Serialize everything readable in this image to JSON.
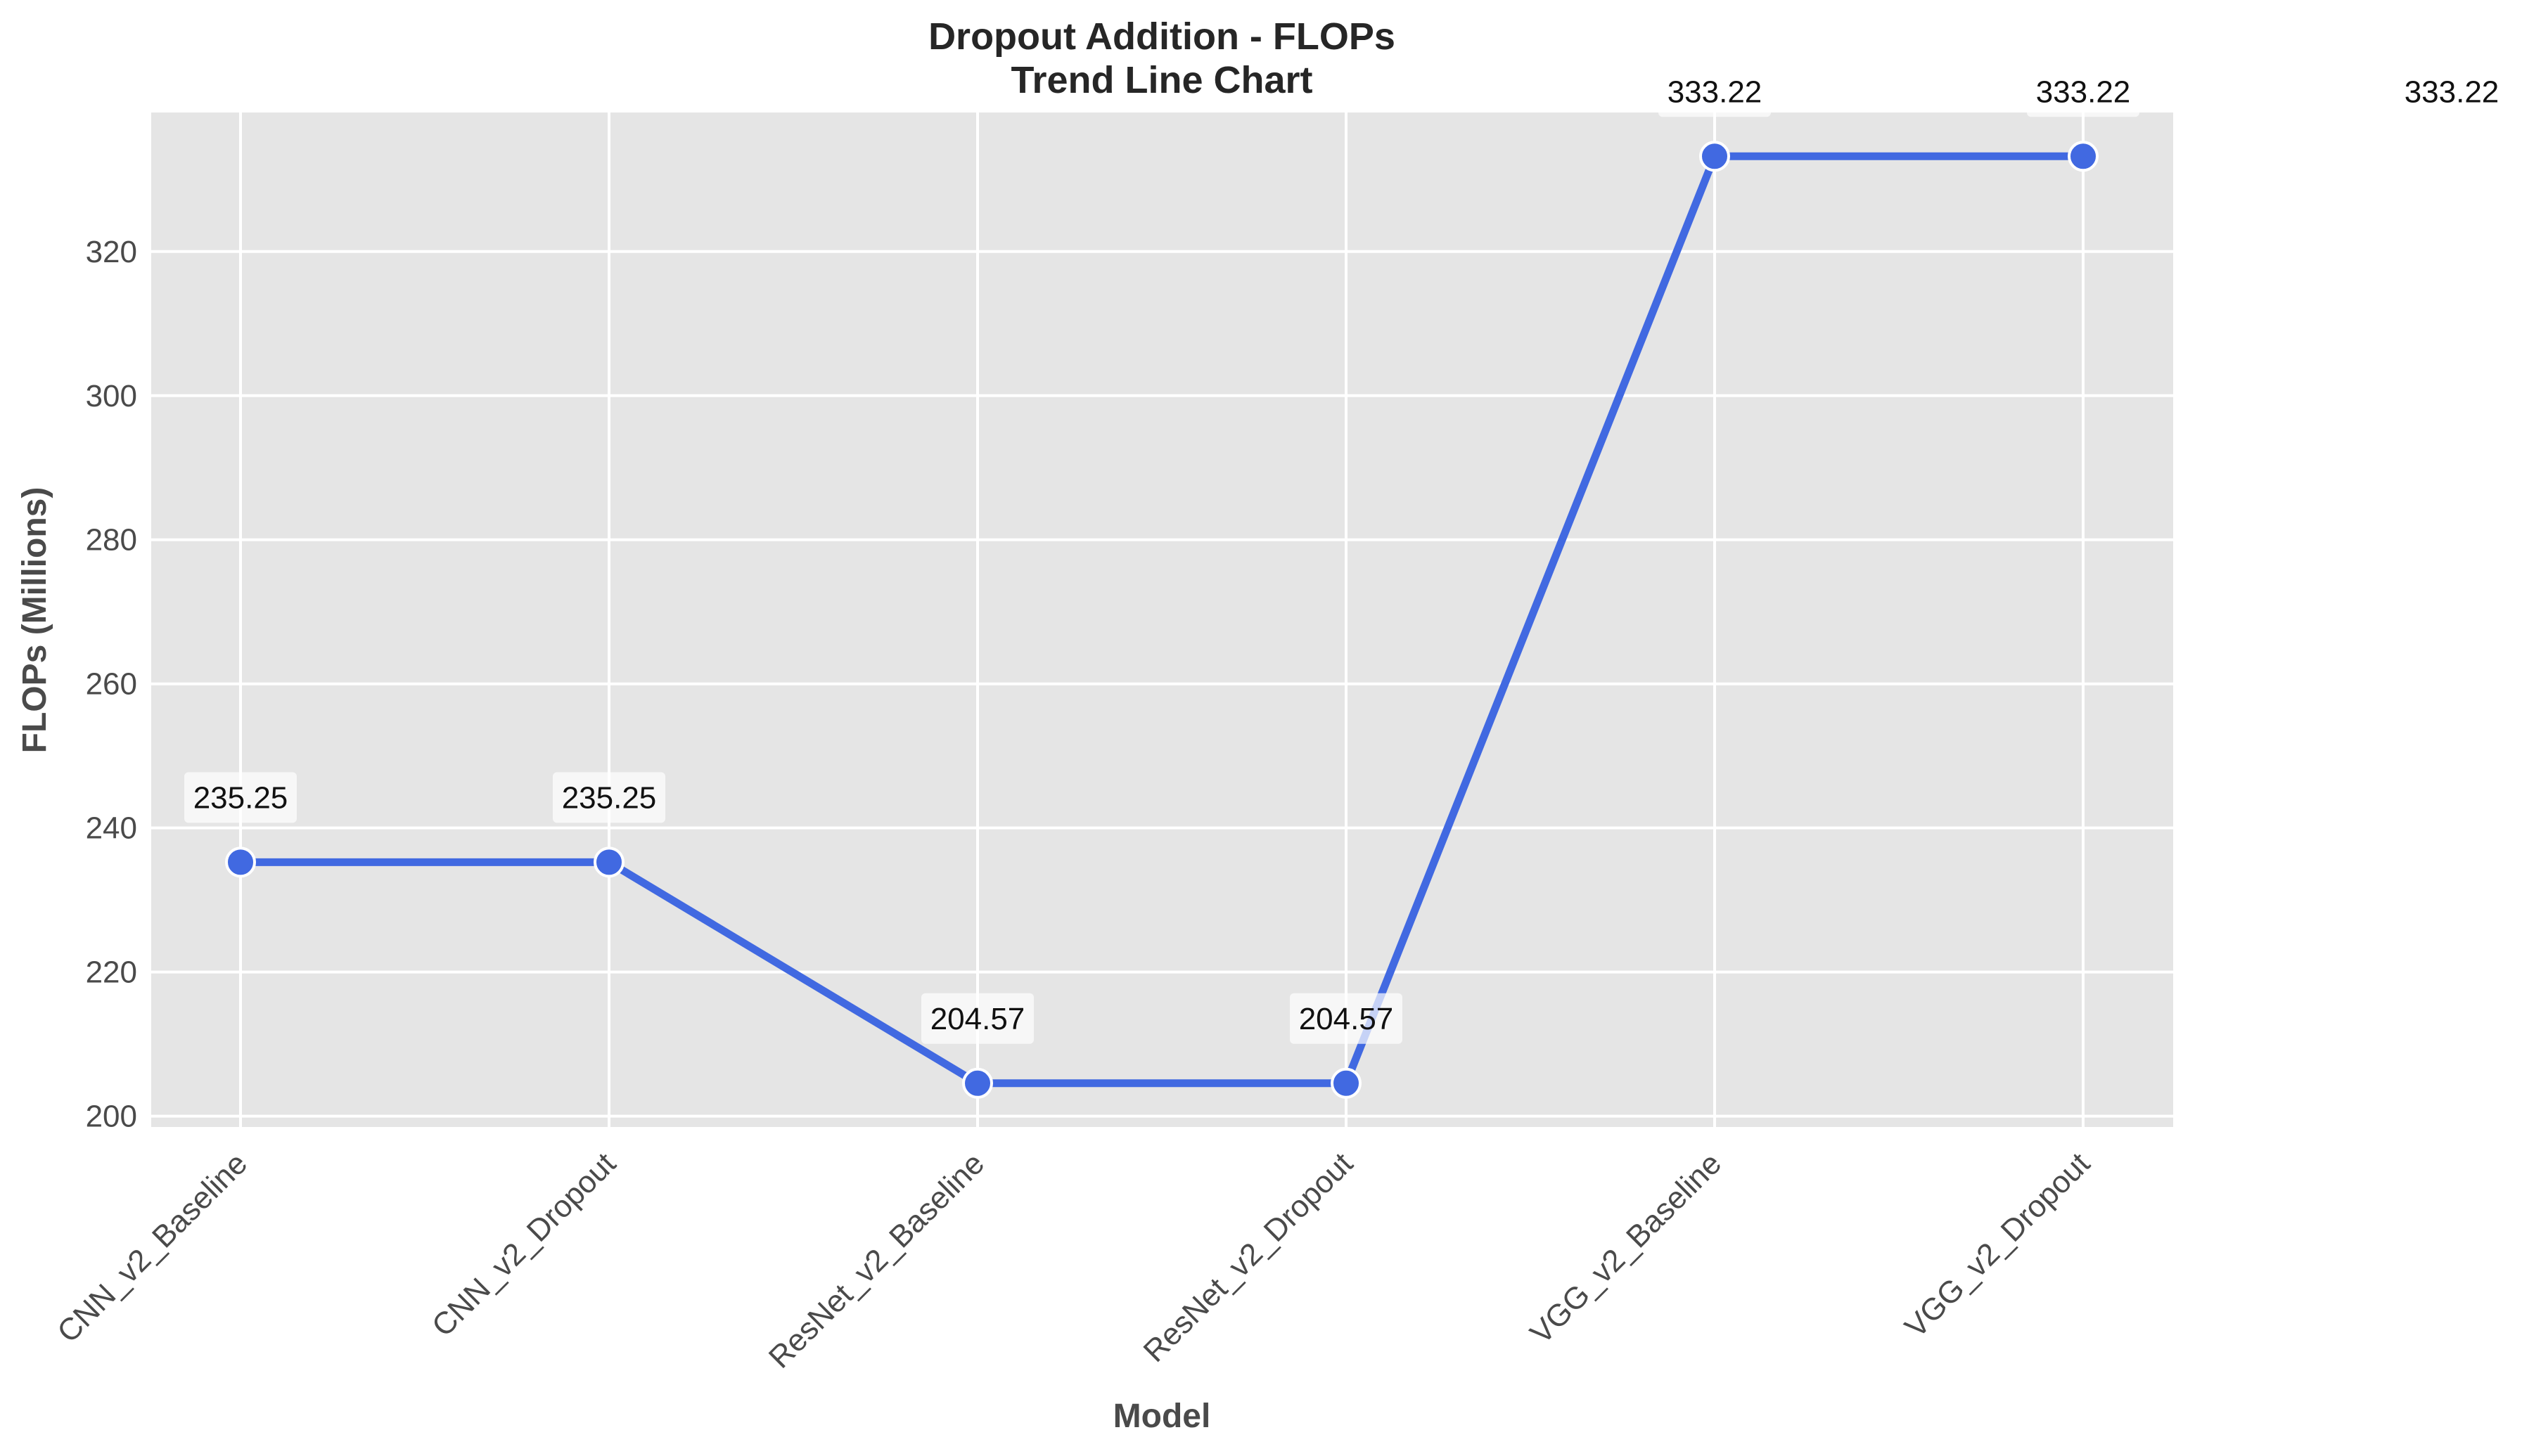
{
  "chart_data": {
    "type": "line",
    "title": "Dropout Addition - FLOPs",
    "subtitle": "Trend Line Chart",
    "xlabel": "Model",
    "ylabel": "FLOPs (Millions)",
    "categories": [
      "CNN_v2_Baseline",
      "CNN_v2_Dropout",
      "ResNet_v2_Baseline",
      "ResNet_v2_Dropout",
      "VGG_v2_Baseline",
      "VGG_v2_Dropout"
    ],
    "series": [
      {
        "values": [
          235.25,
          235.25,
          204.57,
          204.57,
          333.22,
          333.22
        ]
      }
    ],
    "data_labels": [
      "235.25",
      "235.25",
      "204.57",
      "204.57",
      "333.22",
      "333.22"
    ],
    "extra_label": "333.22",
    "yticks": [
      200,
      220,
      240,
      260,
      280,
      300,
      320
    ],
    "ylim": [
      198.5,
      339.3
    ],
    "grid": true,
    "legend": "none",
    "colors": {
      "line": "#4169E1",
      "marker_edge": "#ffffff",
      "plot_bg": "#E5E5E5",
      "grid": "#ffffff"
    }
  }
}
